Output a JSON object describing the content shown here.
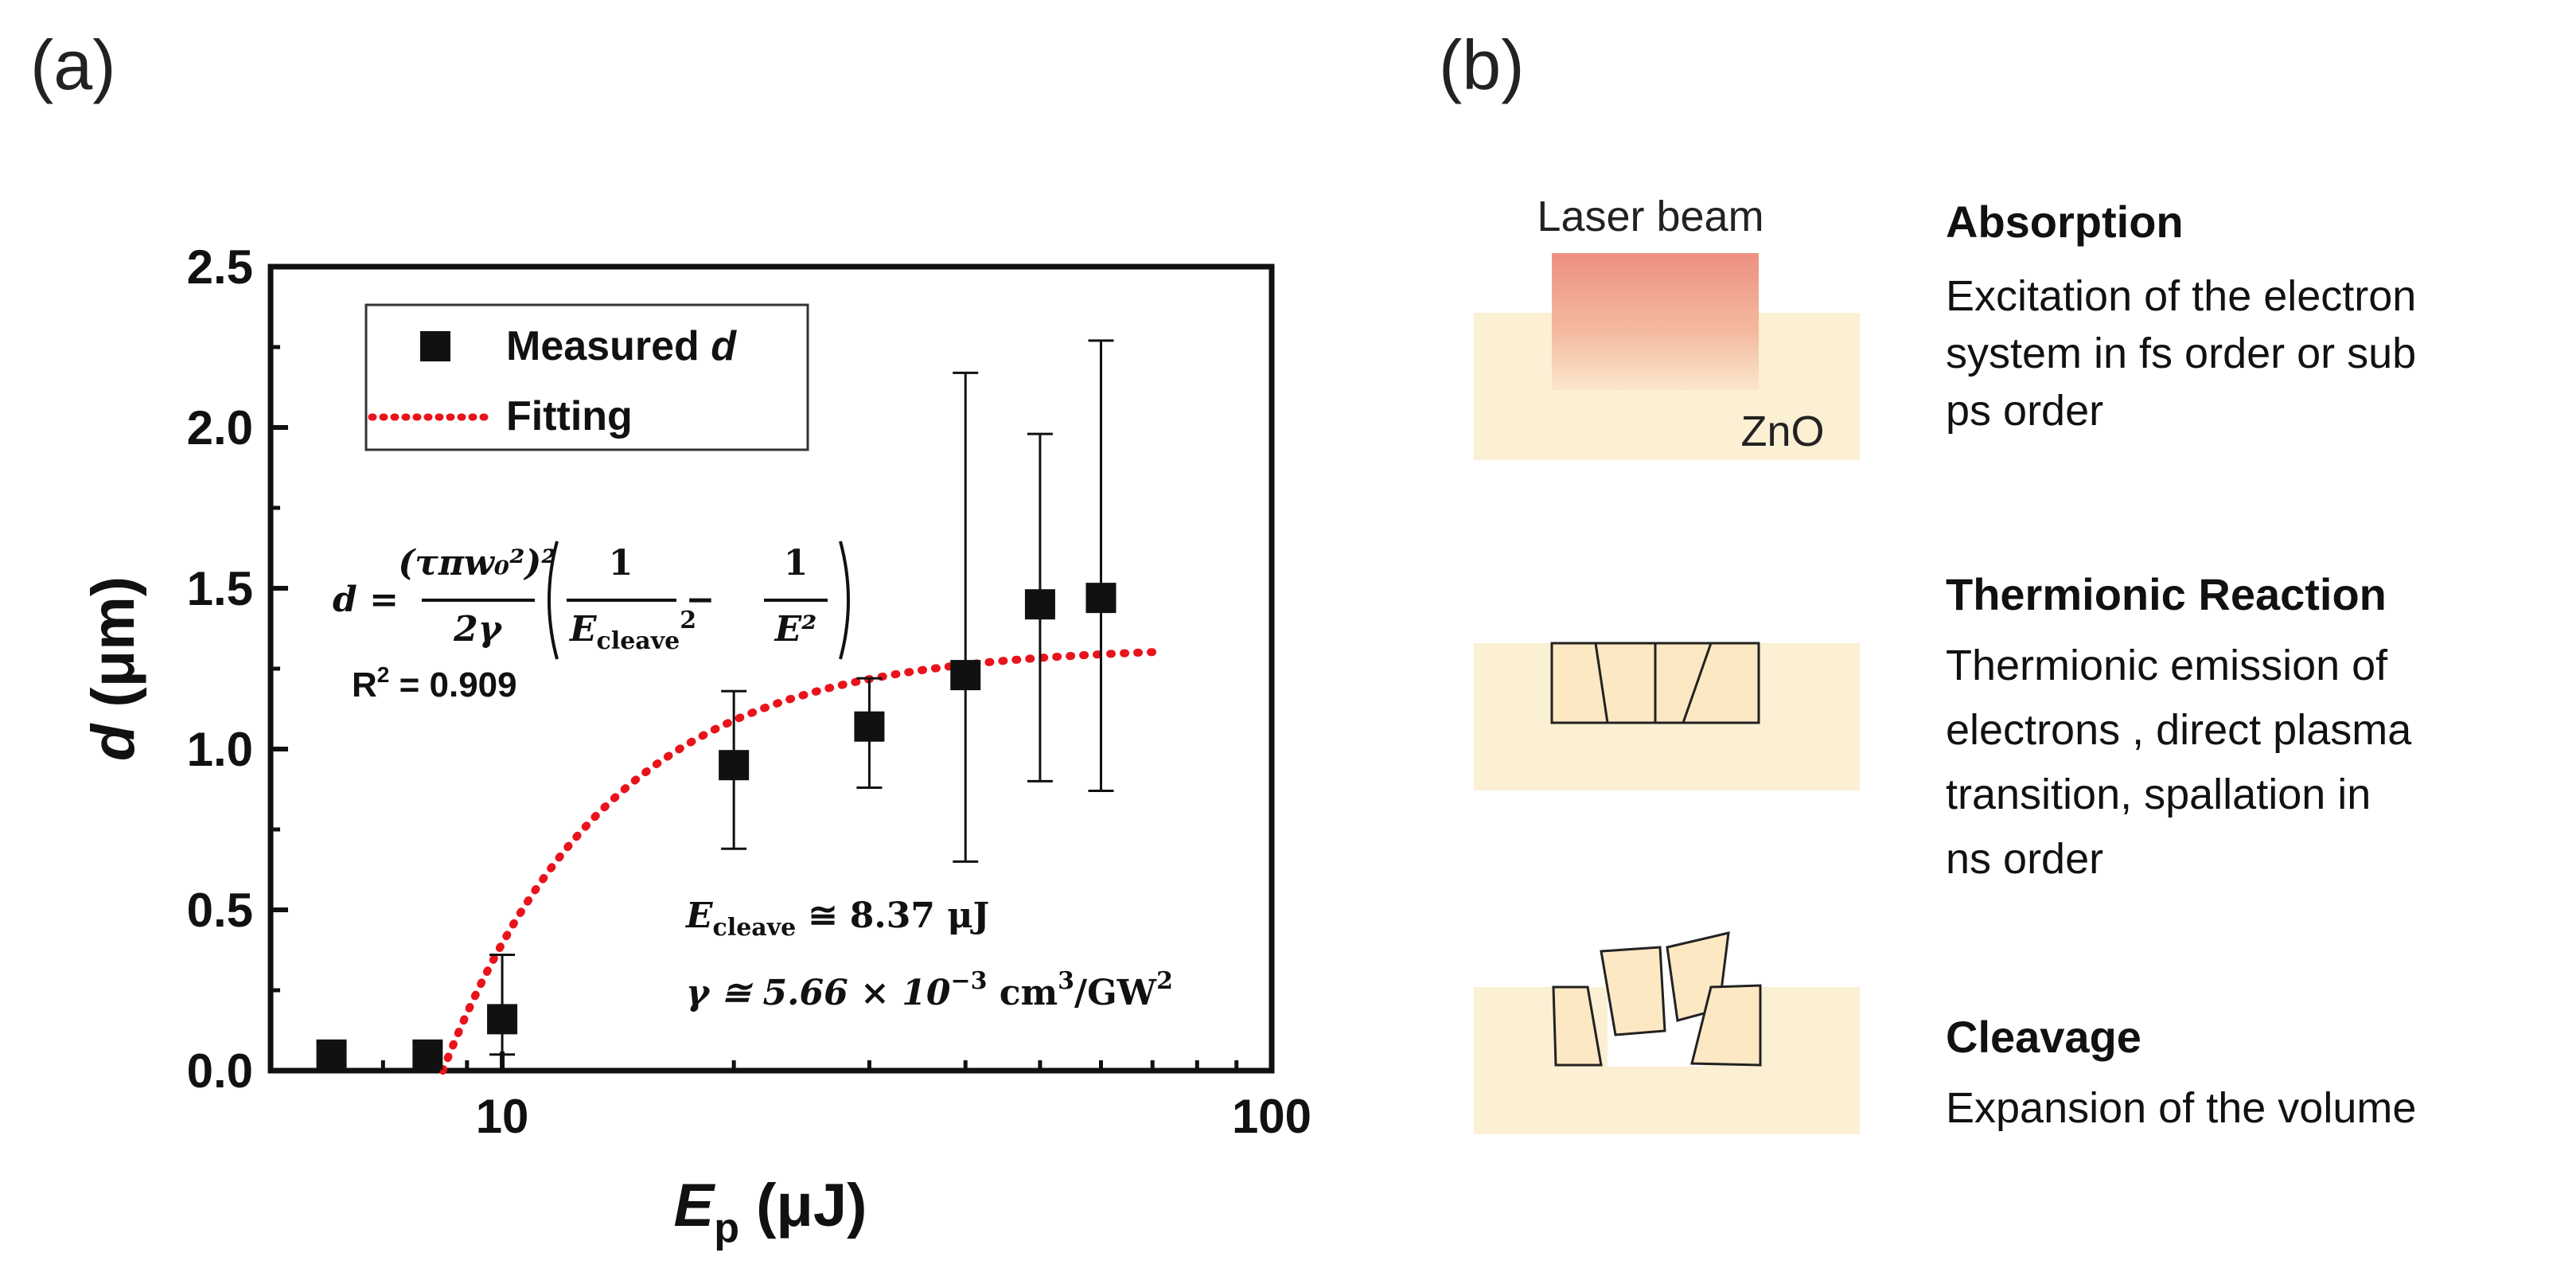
{
  "panel_a": {
    "label": "(a)"
  },
  "panel_b": {
    "label": "(b)"
  },
  "chart_data": {
    "type": "scatter",
    "xscale": "log",
    "xlim": [
      5,
      100
    ],
    "ylim": [
      0.0,
      2.5
    ],
    "xticks": [
      10,
      100
    ],
    "xtick_labels": [
      "10",
      "100"
    ],
    "yticks": [
      0.0,
      0.5,
      1.0,
      1.5,
      2.0,
      2.5
    ],
    "ytick_labels": [
      "0.0",
      "0.5",
      "1.0",
      "1.5",
      "2.0",
      "2.5"
    ],
    "xlabel": {
      "main": "E",
      "sub": "p",
      "unit": " (μJ)"
    },
    "ylabel": {
      "main": "d",
      "unit": " (μm)"
    },
    "series": [
      {
        "name": "Measured d",
        "kind": "points",
        "x": [
          6,
          8,
          10,
          20,
          30,
          40,
          50,
          60
        ],
        "y": [
          0.05,
          0.05,
          0.16,
          0.95,
          1.07,
          1.23,
          1.45,
          1.47
        ],
        "err_low": [
          0.05,
          0.05,
          0.11,
          0.26,
          0.19,
          0.58,
          0.55,
          0.6
        ],
        "err_high": [
          0.0,
          0.0,
          0.2,
          0.23,
          0.15,
          0.94,
          0.53,
          0.8
        ]
      },
      {
        "name": "Fitting",
        "kind": "dotted-line",
        "color": "#e8131b",
        "model": "d = A(1/Ecleave^2 - 1/E^2)",
        "E_cleave": 8.37,
        "A": 92.5,
        "x_range": [
          8.37,
          70
        ]
      }
    ],
    "legend": {
      "position": "top-left",
      "measured_label": "Measured ",
      "measured_label_italic": "d",
      "fitting_label": "Fitting"
    },
    "annotations": {
      "equation_lhs": "d =",
      "equation_num": "(τπw₀²)²",
      "equation_den": "2γ",
      "equation_one": "1",
      "equation_ecl": "E",
      "equation_ecl_sub": "cleave",
      "equation_ecl_sup": "2",
      "equation_e2": "E²",
      "equation_minus": "−",
      "r2_label": "R",
      "r2_sup": "2",
      "r2_value": " = 0.909",
      "ecleave_E": "E",
      "ecleave_sub": "cleave",
      "ecleave_value": " ≅ 8.37 μJ",
      "gamma_text": "γ ≅ 5.66 × 10",
      "gamma_exp": "−3",
      "gamma_unit": " cm",
      "gamma_unit_exp": "3",
      "gamma_unit2": "/GW",
      "gamma_unit2_exp": "2"
    }
  },
  "diagram": {
    "laser_label": "Laser beam",
    "material_label": "ZnO",
    "colors": {
      "substrate": "#fbefd4",
      "block": "#fcecc8",
      "beam_top": "#ec8a7a",
      "beam_bottom": "#fbe6cc"
    },
    "stages": [
      {
        "title": "Absorption",
        "lines": [
          "Excitation of the electron",
          "system in fs order or sub",
          "ps order"
        ]
      },
      {
        "title": "Thermionic Reaction",
        "lines": [
          "Thermionic emission of",
          "electrons , direct plasma",
          "transition, spallation in",
          "ns order"
        ]
      },
      {
        "title": "Cleavage",
        "lines": [
          "Expansion of the volume"
        ]
      }
    ]
  }
}
